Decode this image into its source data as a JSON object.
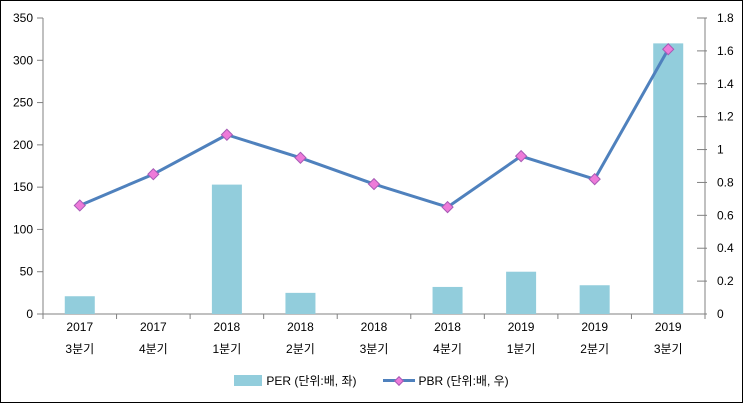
{
  "chart_data": {
    "type": "bar",
    "subtype": "combo-bar-line",
    "title": "",
    "categories": [
      {
        "line1": "2017",
        "line2": "3분기"
      },
      {
        "line1": "2017",
        "line2": "4분기"
      },
      {
        "line1": "2018",
        "line2": "1분기"
      },
      {
        "line1": "2018",
        "line2": "2분기"
      },
      {
        "line1": "2018",
        "line2": "3분기"
      },
      {
        "line1": "2018",
        "line2": "4분기"
      },
      {
        "line1": "2019",
        "line2": "1분기"
      },
      {
        "line1": "2019",
        "line2": "2분기"
      },
      {
        "line1": "2019",
        "line2": "3분기"
      }
    ],
    "series": [
      {
        "name": "PER (단위:배, 좌)",
        "type": "bar",
        "axis": "left",
        "values": [
          21,
          null,
          153,
          25,
          null,
          32,
          50,
          34,
          320
        ]
      },
      {
        "name": "PBR (단위:배, 우)",
        "type": "line",
        "axis": "right",
        "values": [
          0.66,
          0.85,
          1.09,
          0.95,
          0.79,
          0.65,
          0.96,
          0.82,
          1.61
        ]
      }
    ],
    "left_axis": {
      "min": 0,
      "max": 350,
      "ticks": [
        "0",
        "50",
        "100",
        "150",
        "200",
        "250",
        "300",
        "350"
      ]
    },
    "right_axis": {
      "min": 0,
      "max": 1.8,
      "ticks": [
        "0",
        "0.2",
        "0.4",
        "0.6",
        "0.8",
        "1",
        "1.2",
        "1.4",
        "1.6",
        "1.8"
      ]
    },
    "grid": false,
    "legend_position": "bottom",
    "colors": {
      "bar": "#92CDDC",
      "line": "#4F81BD",
      "marker_fill": "#EE7AD9",
      "marker_stroke": "#A65BB5",
      "axis": "#808080",
      "text": "#000000"
    }
  },
  "legend": {
    "per_label": "PER (단위:배, 좌)",
    "pbr_label": "PBR (단위:배, 우)"
  }
}
